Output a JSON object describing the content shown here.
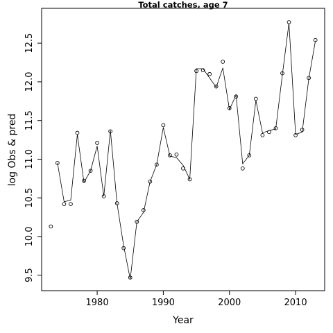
{
  "chart_data": {
    "type": "line",
    "title": "Total catches, age 7",
    "xlabel": "Year",
    "ylabel": "log Obs & pred",
    "xlim": [
      1971.6,
      2014.4
    ],
    "ylim": [
      9.3,
      12.95
    ],
    "x_ticks": [
      1980,
      1990,
      2000,
      2010
    ],
    "y_ticks": [
      9.5,
      10.0,
      10.5,
      11.0,
      11.5,
      12.0,
      12.5
    ],
    "x_tick_labels": [
      "1980",
      "1990",
      "2000",
      "2010"
    ],
    "y_tick_labels": [
      "9.5",
      "10.0",
      "10.5",
      "11.0",
      "11.5",
      "12.0",
      "12.5"
    ],
    "grid": false,
    "legend": "none",
    "series": [
      {
        "style": "points",
        "x": [
          1973,
          1974,
          1975,
          1976,
          1977,
          1978,
          1979,
          1980,
          1981,
          1982,
          1983,
          1984,
          1985,
          1986,
          1987,
          1988,
          1989,
          1990,
          1991,
          1992,
          1993,
          1994,
          1995,
          1996,
          1997,
          1998,
          1999,
          2000,
          2001,
          2002,
          2003,
          2004,
          2005,
          2006,
          2007,
          2008,
          2009,
          2010,
          2011,
          2012,
          2013
        ],
        "values": [
          10.13,
          10.95,
          10.42,
          10.42,
          11.34,
          10.72,
          10.85,
          11.21,
          10.52,
          11.36,
          10.43,
          9.85,
          9.47,
          10.19,
          10.34,
          10.71,
          10.93,
          11.44,
          11.05,
          11.06,
          10.88,
          10.74,
          12.14,
          12.15,
          12.1,
          11.94,
          12.26,
          11.66,
          11.81,
          10.88,
          11.05,
          11.78,
          11.31,
          11.35,
          11.4,
          12.11,
          12.77,
          11.31,
          11.38,
          12.05,
          12.54
        ]
      },
      {
        "style": "line",
        "x": [
          1973,
          1974,
          1975,
          1976,
          1977,
          1978,
          1979,
          1980,
          1981,
          1982,
          1983,
          1984,
          1985,
          1986,
          1987,
          1988,
          1989,
          1990,
          1991,
          1992,
          1993,
          1994,
          1995,
          1996,
          1997,
          1998,
          1999,
          2000,
          2001,
          2002,
          2003,
          2004,
          2005,
          2006,
          2007,
          2008,
          2009,
          2010,
          2011,
          2012,
          2013
        ],
        "values": [
          null,
          10.95,
          10.45,
          10.47,
          11.32,
          10.7,
          10.85,
          11.17,
          10.52,
          11.37,
          10.43,
          9.88,
          9.45,
          10.19,
          10.31,
          10.71,
          10.93,
          11.41,
          11.04,
          11.02,
          10.92,
          10.74,
          12.17,
          12.17,
          12.05,
          11.93,
          12.18,
          11.64,
          11.83,
          10.94,
          11.05,
          11.76,
          11.34,
          11.37,
          11.39,
          12.09,
          12.76,
          11.32,
          11.35,
          12.04,
          12.53
        ]
      }
    ]
  }
}
